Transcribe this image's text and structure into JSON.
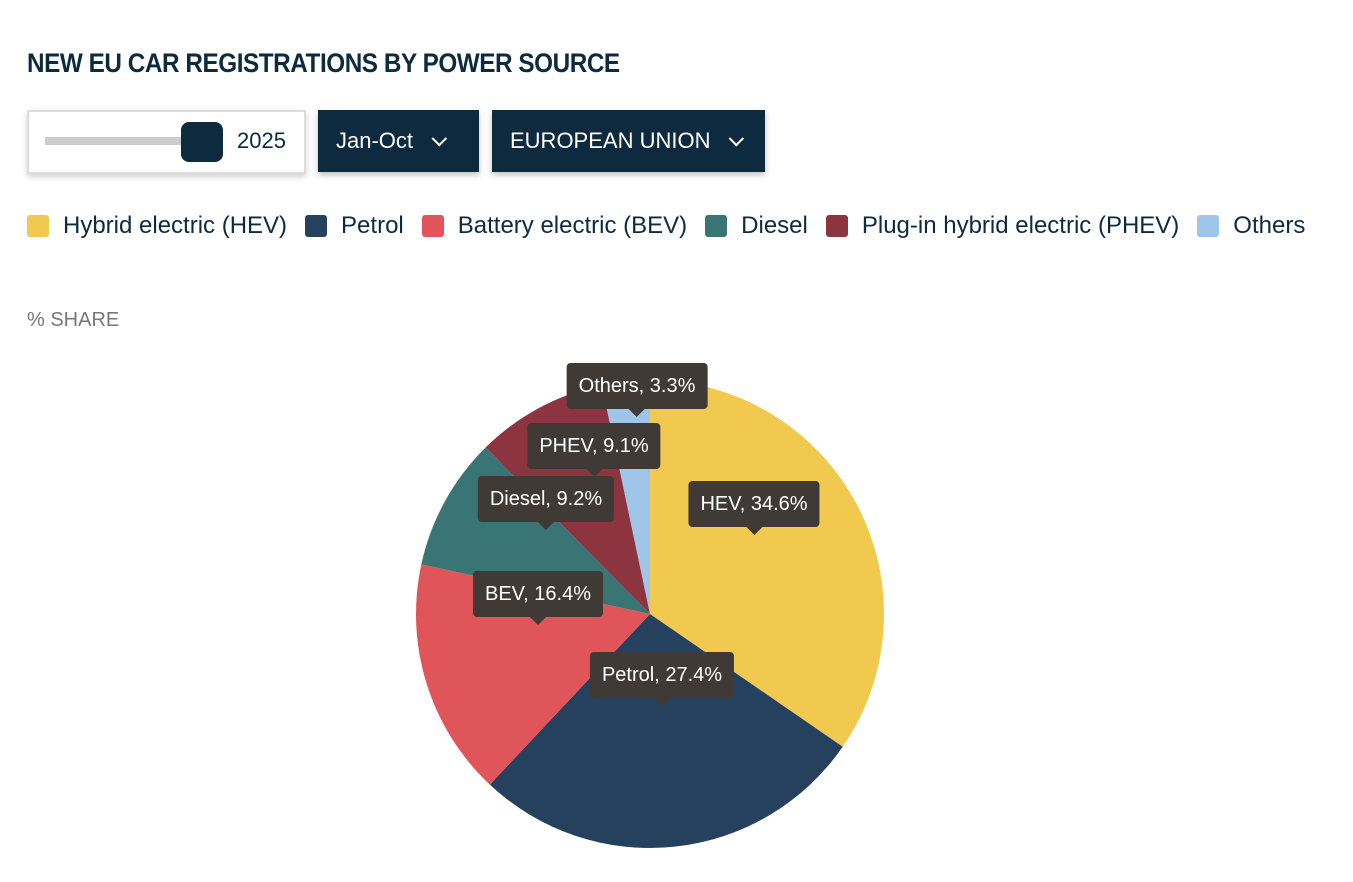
{
  "title": "NEW EU CAR REGISTRATIONS BY POWER SOURCE",
  "controls": {
    "year": "2025",
    "period": "Jan-Oct",
    "region": "EUROPEAN UNION",
    "year_slider_position": 1.0
  },
  "chart_data": {
    "type": "pie",
    "title": "NEW EU CAR REGISTRATIONS BY POWER SOURCE",
    "ylabel": "% SHARE",
    "legend_placement": "top-left",
    "series": [
      {
        "name": "Hybrid electric (HEV)",
        "short": "HEV",
        "value": 34.6,
        "color": "#f2c94f",
        "label": "HEV, 34.6%"
      },
      {
        "name": "Petrol",
        "short": "Petrol",
        "value": 27.4,
        "color": "#26415e",
        "label": "Petrol, 27.4%"
      },
      {
        "name": "Battery electric (BEV)",
        "short": "BEV",
        "value": 16.4,
        "color": "#df555a",
        "label": "BEV, 16.4%"
      },
      {
        "name": "Diesel",
        "short": "Diesel",
        "value": 9.2,
        "color": "#387574",
        "label": "Diesel, 9.2%"
      },
      {
        "name": "Plug-in hybrid electric (PHEV)",
        "short": "PHEV",
        "value": 9.1,
        "color": "#8d3441",
        "label": "PHEV, 9.1%"
      },
      {
        "name": "Others",
        "short": "Others",
        "value": 3.3,
        "color": "#9fc6e8",
        "label": "Others, 3.3%"
      }
    ]
  }
}
